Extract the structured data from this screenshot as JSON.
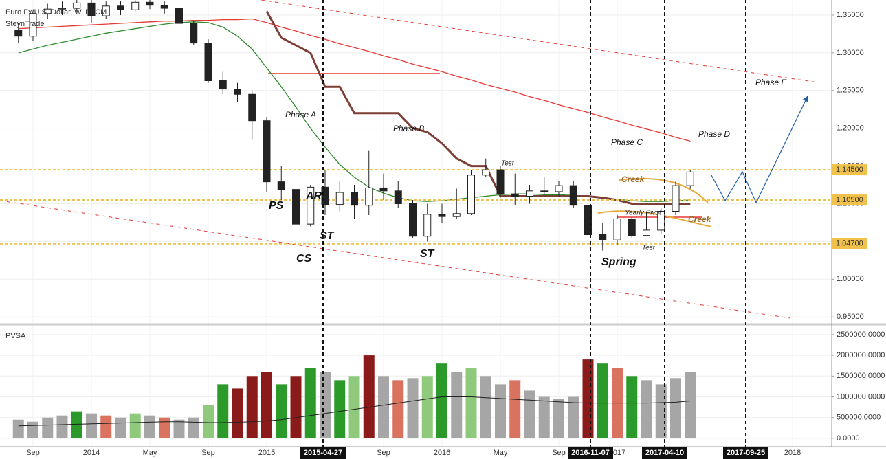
{
  "header": {
    "title": "Euro Fx/U.S. Dollar, W, FXCM",
    "author": "SteynTrade"
  },
  "annotations": [
    "Phase A",
    "Phase B",
    "Phase C",
    "Phase D",
    "Phase E",
    "PS",
    "AR",
    "ST",
    "CS",
    "ST",
    "Test",
    "Creek",
    "Yearly Pivot",
    "Creek",
    "Test",
    "Spring"
  ],
  "date_markers": [
    "2015-04-27",
    "2016-11-07",
    "2017-04-10",
    "2017-09-25"
  ],
  "chart_data": [
    {
      "type": "candlestick",
      "categories": [
        null,
        "Sep",
        null,
        null,
        null,
        "2014",
        null,
        null,
        null,
        "May",
        null,
        null,
        null,
        "Sep",
        null,
        null,
        null,
        "2015",
        null,
        null,
        null,
        null,
        null,
        null,
        null,
        "Sep",
        null,
        null,
        null,
        "2016",
        null,
        null,
        null,
        "May",
        null,
        null,
        null,
        "Sep",
        null,
        null,
        null,
        "2017",
        null,
        null,
        null,
        null,
        null,
        null,
        null,
        null,
        null,
        null,
        null,
        "2018"
      ],
      "open": [
        1.33,
        1.322,
        1.352,
        1.358,
        1.359,
        1.366,
        1.349,
        1.362,
        1.357,
        1.367,
        1.363,
        1.359,
        1.339,
        1.313,
        1.263,
        1.252,
        1.245,
        1.21,
        1.129,
        1.119,
        1.073,
        1.122,
        1.099,
        1.115,
        1.098,
        1.121,
        1.117,
        1.1,
        1.057,
        1.086,
        1.083,
        1.087,
        1.138,
        1.145,
        1.113,
        1.11,
        1.117,
        1.116,
        1.124,
        1.098,
        1.059,
        1.052,
        1.08,
        1.058,
        1.065,
        1.09,
        1.124,
        null,
        null,
        null,
        null,
        null,
        null,
        null
      ],
      "high": [
        1.34,
        1.356,
        1.365,
        1.368,
        1.37,
        1.37,
        1.368,
        1.369,
        1.37,
        1.37,
        1.368,
        1.362,
        1.342,
        1.318,
        1.275,
        1.26,
        1.25,
        1.215,
        1.15,
        1.123,
        1.125,
        1.145,
        1.13,
        1.125,
        1.17,
        1.14,
        1.13,
        1.105,
        1.1,
        1.1,
        1.12,
        1.145,
        1.16,
        1.15,
        1.14,
        1.125,
        1.135,
        1.13,
        1.13,
        1.1,
        1.075,
        1.085,
        1.082,
        1.09,
        1.095,
        1.13,
        1.145,
        null,
        null,
        null,
        null,
        null,
        null,
        null
      ],
      "low": [
        1.313,
        1.316,
        1.345,
        1.35,
        1.352,
        1.34,
        1.345,
        1.35,
        1.355,
        1.358,
        1.352,
        1.335,
        1.31,
        1.26,
        1.245,
        1.235,
        1.185,
        1.115,
        1.105,
        1.045,
        1.07,
        1.085,
        1.09,
        1.08,
        1.085,
        1.105,
        1.095,
        1.055,
        1.05,
        1.075,
        1.08,
        1.085,
        1.135,
        1.108,
        1.098,
        1.1,
        1.11,
        1.11,
        1.095,
        1.052,
        1.038,
        1.045,
        1.055,
        1.058,
        1.06,
        1.085,
        1.12,
        null,
        null,
        null,
        null,
        null,
        null,
        null
      ],
      "close": [
        1.322,
        1.352,
        1.358,
        1.359,
        1.366,
        1.349,
        1.362,
        1.357,
        1.367,
        1.363,
        1.359,
        1.339,
        1.313,
        1.263,
        1.252,
        1.245,
        1.21,
        1.129,
        1.119,
        1.073,
        1.122,
        1.099,
        1.115,
        1.098,
        1.121,
        1.117,
        1.1,
        1.057,
        1.086,
        1.083,
        1.087,
        1.138,
        1.145,
        1.113,
        1.11,
        1.117,
        1.116,
        1.124,
        1.098,
        1.059,
        1.052,
        1.08,
        1.058,
        1.065,
        1.09,
        1.124,
        1.142,
        null,
        null,
        null,
        null,
        null,
        null,
        null
      ],
      "series": [
        {
          "color": "#e53935",
          "values": [
            1.332,
            1.333,
            1.334,
            1.335,
            1.336,
            1.337,
            1.338,
            1.339,
            1.34,
            1.341,
            1.342,
            1.342,
            1.343,
            1.343,
            1.344,
            1.344,
            1.345,
            1.34,
            1.334,
            1.329,
            1.323,
            1.318,
            1.312,
            1.307,
            1.302,
            1.296,
            1.291,
            1.285,
            1.28,
            1.275,
            1.269,
            1.264,
            1.258,
            1.253,
            1.248,
            1.242,
            1.237,
            1.231,
            1.226,
            1.221,
            1.215,
            1.21,
            1.204,
            1.199,
            1.194,
            1.188,
            1.183,
            null,
            null,
            null,
            null,
            null,
            null,
            null
          ]
        },
        {
          "color": "#2e8b2e",
          "values": [
            1.3,
            1.305,
            1.31,
            1.314,
            1.318,
            1.322,
            1.326,
            1.329,
            1.332,
            1.335,
            1.338,
            1.34,
            1.341,
            1.34,
            1.334,
            1.322,
            1.305,
            1.28,
            1.255,
            1.228,
            1.2,
            1.175,
            1.152,
            1.135,
            1.122,
            1.114,
            1.108,
            1.104,
            1.103,
            1.104,
            1.106,
            1.108,
            1.11,
            1.112,
            1.113,
            1.113,
            1.112,
            1.112,
            1.111,
            1.11,
            1.108,
            1.106,
            1.104,
            1.103,
            1.103,
            1.104,
            1.105,
            null,
            null,
            null,
            null,
            null,
            null,
            null
          ]
        },
        {
          "color": "#7b3f35",
          "values": [
            null,
            null,
            null,
            null,
            null,
            null,
            null,
            null,
            null,
            null,
            null,
            null,
            null,
            null,
            null,
            null,
            null,
            1.355,
            1.32,
            1.31,
            1.3,
            1.255,
            1.255,
            1.22,
            1.22,
            1.22,
            1.22,
            1.2,
            1.195,
            1.18,
            1.16,
            1.15,
            1.15,
            1.11,
            1.11,
            1.11,
            1.11,
            1.11,
            1.11,
            1.11,
            1.108,
            1.105,
            1.1,
            1.1,
            1.1,
            1.1,
            1.1,
            null,
            null,
            null,
            null,
            null,
            null,
            null
          ]
        }
      ],
      "levels": [
        {
          "value": 1.145,
          "label": "1.14500"
        },
        {
          "value": 1.105,
          "label": "1.10500"
        },
        {
          "value": 1.047,
          "label": "1.04700"
        }
      ],
      "level_color": "#f0c24b",
      "ylim": [
        0.942,
        1.37
      ],
      "yticks": [
        {
          "value": 1.35,
          "label": "1.35000"
        },
        {
          "value": 1.3,
          "label": "1.30000"
        },
        {
          "value": 1.25,
          "label": "1.25000"
        },
        {
          "value": 1.2,
          "label": "1.20000"
        },
        {
          "value": 1.15,
          "label": "1.15000"
        },
        {
          "value": 1.1,
          "label": "1.10000"
        },
        {
          "value": 1.05,
          "label": "1.05000"
        },
        {
          "value": 1.0,
          "label": "1.00000"
        },
        {
          "value": 0.95,
          "label": "0.95000"
        }
      ],
      "grid": true
    },
    {
      "type": "bar",
      "title": "PVSA",
      "values": [
        450000,
        400000,
        500000,
        550000,
        650000,
        600000,
        550000,
        500000,
        600000,
        550000,
        500000,
        450000,
        500000,
        800000,
        1300000,
        1200000,
        1500000,
        1600000,
        1300000,
        1500000,
        1700000,
        1600000,
        1400000,
        1500000,
        2000000,
        1500000,
        1400000,
        1450000,
        1500000,
        1800000,
        1600000,
        1700000,
        1500000,
        1300000,
        1400000,
        1150000,
        1000000,
        950000,
        1000000,
        1900000,
        1800000,
        1700000,
        1500000,
        1400000,
        1300000,
        1450000,
        1600000,
        null,
        null,
        null,
        null,
        null,
        null,
        null
      ],
      "colors": [
        "#a6a6a6",
        "#a6a6a6",
        "#a6a6a6",
        "#a6a6a6",
        "#2b9a2b",
        "#a6a6a6",
        "#d9725f",
        "#a6a6a6",
        "#8fca7c",
        "#a6a6a6",
        "#d9725f",
        "#a6a6a6",
        "#a6a6a6",
        "#8fca7c",
        "#2b9a2b",
        "#8b1a1a",
        "#8b1a1a",
        "#8b1a1a",
        "#2b9a2b",
        "#8b1a1a",
        "#2b9a2b",
        "#a6a6a6",
        "#2b9a2b",
        "#8fca7c",
        "#8b1a1a",
        "#a6a6a6",
        "#d9725f",
        "#a6a6a6",
        "#8fca7c",
        "#2b9a2b",
        "#a6a6a6",
        "#8fca7c",
        "#a6a6a6",
        "#a6a6a6",
        "#d9725f",
        "#a6a6a6",
        "#a6a6a6",
        "#a6a6a6",
        "#a6a6a6",
        "#8b1a1a",
        "#2b9a2b",
        "#d9725f",
        "#2b9a2b",
        "#a6a6a6",
        "#a6a6a6",
        "#a6a6a6",
        "#a6a6a6",
        null,
        null,
        null,
        null,
        null,
        null,
        null
      ],
      "series": [
        {
          "color": "#222222",
          "values": [
            300000,
            310000,
            320000,
            330000,
            340000,
            350000,
            360000,
            370000,
            380000,
            390000,
            400000,
            400000,
            390000,
            380000,
            380000,
            390000,
            400000,
            420000,
            450000,
            500000,
            550000,
            600000,
            650000,
            700000,
            750000,
            800000,
            850000,
            900000,
            950000,
            1000000,
            1000000,
            1000000,
            980000,
            960000,
            940000,
            920000,
            900000,
            880000,
            860000,
            850000,
            850000,
            850000,
            850000,
            850000,
            860000,
            870000,
            900000,
            null,
            null,
            null,
            null,
            null,
            null,
            null
          ]
        }
      ],
      "ylim": [
        -200000,
        2680000
      ],
      "yticks": [
        {
          "value": 0,
          "label": "0.0000"
        },
        {
          "value": 500000,
          "label": "500000.0000"
        },
        {
          "value": 1000000,
          "label": "1000000.0000"
        },
        {
          "value": 1500000,
          "label": "1500000.0000"
        },
        {
          "value": 2000000,
          "label": "2000000.0000"
        },
        {
          "value": 2500000,
          "label": "2500000.0000"
        }
      ],
      "grid": true
    }
  ]
}
